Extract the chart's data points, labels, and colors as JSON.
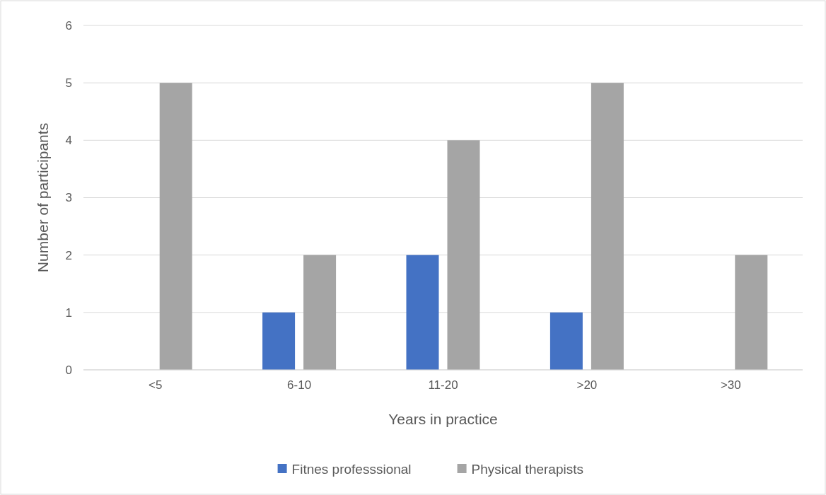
{
  "chart_data": {
    "type": "bar",
    "xlabel": "Years in practice",
    "ylabel": "Number of participants",
    "categories": [
      "<5",
      "6-10",
      "11-20",
      ">20",
      ">30"
    ],
    "series": [
      {
        "name": "Fitnes professsional",
        "color": "#4472c4",
        "values": [
          0,
          1,
          2,
          1,
          0
        ]
      },
      {
        "name": "Physical therapists",
        "color": "#a5a5a5",
        "values": [
          5,
          2,
          4,
          5,
          2
        ]
      }
    ],
    "ylim": [
      0,
      6
    ],
    "yticks": [
      0,
      1,
      2,
      3,
      4,
      5,
      6
    ],
    "grid": "y",
    "legend": "bottom"
  }
}
